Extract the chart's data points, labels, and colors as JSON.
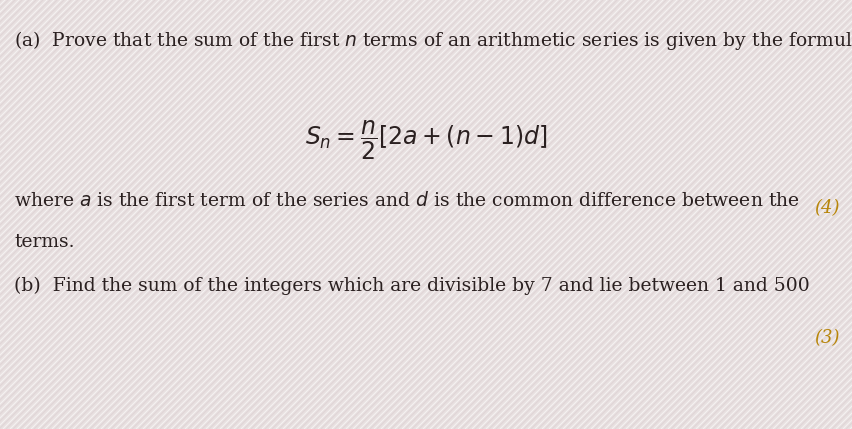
{
  "background_color": "#e8e0e0",
  "stripe_color_1": "#ddd5d8",
  "stripe_color_2": "#f0eaec",
  "text_color": "#2a2020",
  "marks_color": "#b8860b",
  "fig_width": 8.53,
  "fig_height": 4.29,
  "dpi": 100,
  "line_a": "(a)  Prove that the sum of the first $n$ terms of an arithmetic series is given by the formula",
  "formula": "$S_n = \\dfrac{n}{2}[2a + (n-1)d]$",
  "line_where": "where $a$ is the first term of the series and $d$ is the common difference between the",
  "line_terms": "terms.",
  "marks_a": "(4)",
  "line_b": "(b)  Find the sum of the integers which are divisible by 7 and lie between 1 and 500",
  "marks_b": "(3)",
  "font_size_main": 13.5,
  "font_size_formula": 17,
  "font_size_marks": 13
}
